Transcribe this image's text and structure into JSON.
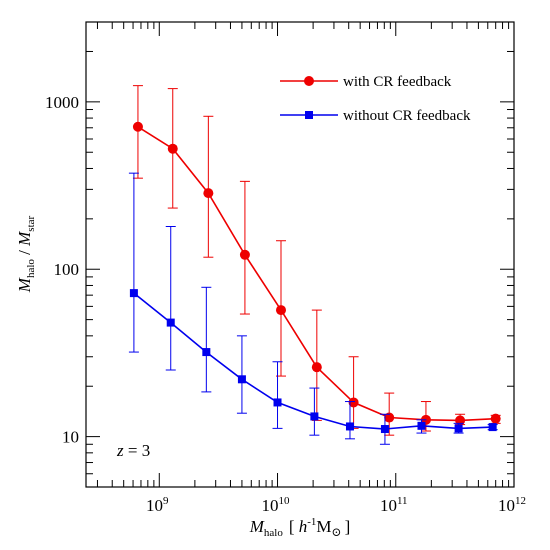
{
  "chart_data": {
    "type": "line",
    "title": "",
    "xlabel": {
      "main": "M",
      "sub": "halo",
      "unit_open": "[ ",
      "unit_h": "h",
      "unit_h_exp": "-1",
      "unit_m": "M",
      "unit_sun": "⊙",
      "unit_close": "]"
    },
    "ylabel": {
      "main1": "M",
      "sub1": "halo",
      "sep": " / ",
      "main2": "M",
      "sub2": "star"
    },
    "x_scale": "log",
    "y_scale": "log",
    "xlim": [
      240000000.0,
      1000000000000.0
    ],
    "ylim": [
      5.0,
      3000
    ],
    "x_ticks": [
      {
        "value": 1000000000.0,
        "base": "10",
        "exp": "9"
      },
      {
        "value": 10000000000.0,
        "base": "10",
        "exp": "10"
      },
      {
        "value": 100000000000.0,
        "base": "10",
        "exp": "11"
      },
      {
        "value": 1000000000000.0,
        "base": "10",
        "exp": "12"
      }
    ],
    "y_ticks": [
      {
        "value": 10,
        "label": "10"
      },
      {
        "value": 100,
        "label": "100"
      },
      {
        "value": 1000,
        "label": "1000"
      }
    ],
    "legend_position": "top-right",
    "annotation": {
      "z_label": "z",
      "z_value": " = 3"
    },
    "series": [
      {
        "name": "with CR feedback",
        "color": "#ee0000",
        "marker": "circle",
        "x": [
          660000000.0,
          1300000000.0,
          2600000000.0,
          5300000000.0,
          10700000000.0,
          21500000000.0,
          44000000000.0,
          88000000000.0,
          180000000000.0,
          350000000000.0,
          700000000000.0
        ],
        "y": [
          710,
          525,
          285,
          122,
          57,
          26,
          16,
          13,
          12.6,
          12.5,
          12.8
        ],
        "yerr_low": [
          350,
          232,
          118,
          54,
          23,
          12.5,
          11.2,
          10.2,
          10.8,
          11.8,
          12.0
        ],
        "yerr_high": [
          1250,
          1200,
          820,
          335,
          148,
          57,
          30,
          18.2,
          16.2,
          13.6,
          13.4
        ]
      },
      {
        "name": "without CR feedback",
        "color": "#0000ee",
        "marker": "square",
        "x": [
          610000000.0,
          1250000000.0,
          2500000000.0,
          5000000000.0,
          10000000000.0,
          20500000000.0,
          41000000000.0,
          81000000000.0,
          165000000000.0,
          340000000000.0,
          660000000000.0
        ],
        "y": [
          72,
          48,
          32,
          22,
          16,
          13.2,
          11.5,
          11.1,
          11.6,
          11.2,
          11.4
        ],
        "yerr_low": [
          32,
          25,
          18.5,
          13.8,
          11.2,
          10.2,
          9.7,
          9.0,
          10.5,
          10.5,
          11.0
        ],
        "yerr_high": [
          375,
          180,
          78,
          40,
          28,
          19.5,
          16.2,
          13.6,
          12.6,
          12.0,
          11.8
        ]
      }
    ]
  }
}
